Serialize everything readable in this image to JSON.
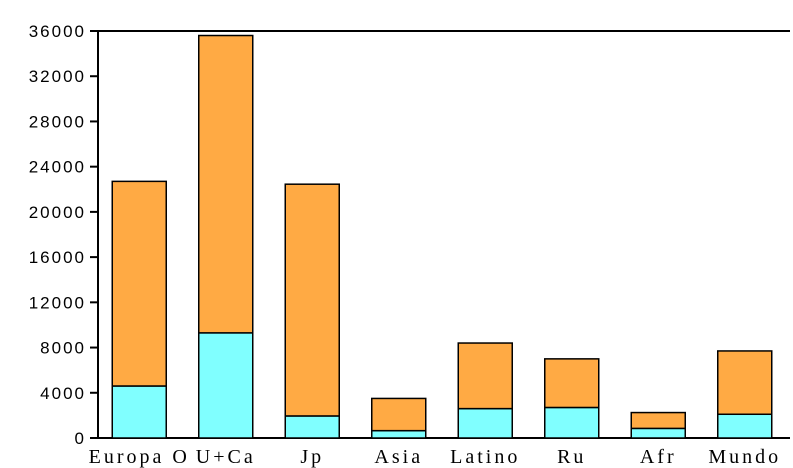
{
  "chart_data": {
    "type": "bar",
    "stacked": true,
    "categories": [
      "Europa O",
      "U+Ca",
      "Jp",
      "Asia",
      "Latino",
      "Ru",
      "Afr",
      "Mundo"
    ],
    "series": [
      {
        "values": [
          4600,
          9300,
          1950,
          650,
          2600,
          2700,
          850,
          2100
        ],
        "color": "#80FFFF"
      },
      {
        "values": [
          18100,
          26300,
          20500,
          2850,
          5800,
          4300,
          1400,
          5600
        ],
        "color": "#FFAA44"
      }
    ],
    "yticks": [
      "0",
      "4000",
      "8000",
      "12000",
      "16000",
      "20000",
      "24000",
      "28000",
      "32000",
      "36000"
    ],
    "ylim": [
      0,
      36000
    ],
    "grid": false,
    "legend": "none"
  }
}
